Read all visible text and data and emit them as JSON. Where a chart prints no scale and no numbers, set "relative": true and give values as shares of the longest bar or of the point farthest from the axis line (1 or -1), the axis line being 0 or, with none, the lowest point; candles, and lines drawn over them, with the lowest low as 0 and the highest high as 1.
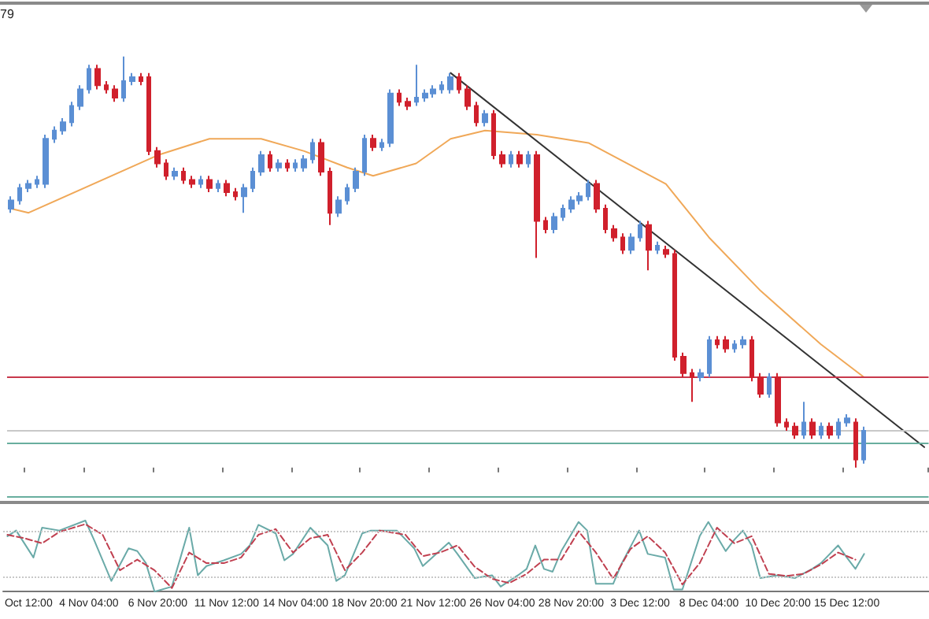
{
  "chart_data": [
    {
      "type": "candlestick",
      "relative": true,
      "tick_labels": "x",
      "grid": false,
      "marker": "none",
      "annotations": [
        "79"
      ],
      "categories": [
        null,
        null,
        "Oct 12:00",
        null,
        null,
        null,
        null,
        null,
        null,
        "4 Nov 04:00",
        null,
        null,
        null,
        null,
        null,
        null,
        null,
        "6 Nov 20:00",
        null,
        null,
        null,
        null,
        null,
        null,
        null,
        "11 Nov 12:00",
        null,
        null,
        null,
        null,
        null,
        null,
        null,
        "14 Nov 04:00",
        null,
        null,
        null,
        null,
        null,
        null,
        null,
        "18 Nov 20:00",
        null,
        null,
        null,
        null,
        null,
        null,
        null,
        "21 Nov 12:00",
        null,
        null,
        null,
        null,
        null,
        null,
        null,
        "26 Nov 04:00",
        null,
        null,
        null,
        null,
        null,
        null,
        null,
        "28 Nov 20:00",
        null,
        null,
        null,
        null,
        null,
        null,
        null,
        "3 Dec 12:00",
        null,
        null,
        null,
        null,
        null,
        null,
        null,
        "8 Dec 04:00",
        null,
        null,
        null,
        null,
        null,
        null,
        null,
        "10 Dec 20:00",
        null,
        null,
        null,
        null,
        null,
        null,
        null,
        "15 Dec 12:00",
        null,
        null,
        null,
        null,
        null,
        null,
        null,
        null,
        null
      ],
      "ohlc": [
        [
          0.63,
          0.66,
          0.62,
          0.65
        ],
        [
          0.65,
          0.69,
          0.64,
          0.68
        ],
        [
          0.68,
          0.7,
          0.67,
          0.69
        ],
        [
          0.69,
          0.71,
          0.68,
          0.7
        ],
        [
          0.69,
          0.81,
          0.68,
          0.8
        ],
        [
          0.8,
          0.83,
          0.79,
          0.82
        ],
        [
          0.82,
          0.85,
          0.81,
          0.84
        ],
        [
          0.84,
          0.89,
          0.83,
          0.88
        ],
        [
          0.88,
          0.93,
          0.87,
          0.92
        ],
        [
          0.92,
          0.98,
          0.91,
          0.97
        ],
        [
          0.97,
          0.98,
          0.92,
          0.93
        ],
        [
          0.93,
          0.94,
          0.91,
          0.92
        ],
        [
          0.92,
          0.93,
          0.89,
          0.9
        ],
        [
          0.9,
          1,
          0.89,
          0.94
        ],
        [
          0.94,
          0.96,
          0.93,
          0.95
        ],
        [
          0.95,
          0.96,
          0.93,
          0.94
        ],
        [
          0.95,
          0.96,
          0.76,
          0.77
        ],
        [
          0.77,
          0.78,
          0.73,
          0.74
        ],
        [
          0.74,
          0.75,
          0.7,
          0.71
        ],
        [
          0.71,
          0.73,
          0.7,
          0.72
        ],
        [
          0.72,
          0.73,
          0.69,
          0.7
        ],
        [
          0.7,
          0.71,
          0.68,
          0.69
        ],
        [
          0.69,
          0.71,
          0.68,
          0.7
        ],
        [
          0.7,
          0.71,
          0.67,
          0.68
        ],
        [
          0.68,
          0.7,
          0.67,
          0.69
        ],
        [
          0.69,
          0.7,
          0.66,
          0.67
        ],
        [
          0.67,
          0.68,
          0.65,
          0.66
        ],
        [
          0.66,
          0.69,
          0.62,
          0.68
        ],
        [
          0.68,
          0.73,
          0.67,
          0.72
        ],
        [
          0.72,
          0.77,
          0.71,
          0.76
        ],
        [
          0.76,
          0.77,
          0.72,
          0.73
        ],
        [
          0.73,
          0.75,
          0.72,
          0.74
        ],
        [
          0.74,
          0.75,
          0.72,
          0.73
        ],
        [
          0.73,
          0.75,
          0.72,
          0.74
        ],
        [
          0.73,
          0.76,
          0.72,
          0.75
        ],
        [
          0.75,
          0.8,
          0.74,
          0.79
        ],
        [
          0.79,
          0.8,
          0.71,
          0.72
        ],
        [
          0.72,
          0.73,
          0.59,
          0.62
        ],
        [
          0.62,
          0.66,
          0.61,
          0.65
        ],
        [
          0.65,
          0.69,
          0.64,
          0.68
        ],
        [
          0.68,
          0.73,
          0.67,
          0.72
        ],
        [
          0.72,
          0.81,
          0.71,
          0.8
        ],
        [
          0.8,
          0.81,
          0.77,
          0.78
        ],
        [
          0.78,
          0.8,
          0.77,
          0.79
        ],
        [
          0.79,
          0.92,
          0.78,
          0.91
        ],
        [
          0.91,
          0.92,
          0.88,
          0.89
        ],
        [
          0.89,
          0.9,
          0.87,
          0.88
        ],
        [
          0.89,
          0.98,
          0.88,
          0.9
        ],
        [
          0.9,
          0.92,
          0.89,
          0.91
        ],
        [
          0.91,
          0.93,
          0.9,
          0.92
        ],
        [
          0.92,
          0.94,
          0.91,
          0.93
        ],
        [
          0.92,
          0.96,
          0.91,
          0.95
        ],
        [
          0.95,
          0.96,
          0.91,
          0.92
        ],
        [
          0.92,
          0.93,
          0.87,
          0.88
        ],
        [
          0.88,
          0.89,
          0.83,
          0.84
        ],
        [
          0.84,
          0.87,
          0.83,
          0.86
        ],
        [
          0.86,
          0.87,
          0.75,
          0.76
        ],
        [
          0.76,
          0.77,
          0.73,
          0.74
        ],
        [
          0.74,
          0.77,
          0.73,
          0.76
        ],
        [
          0.76,
          0.77,
          0.73,
          0.74
        ],
        [
          0.74,
          0.77,
          0.73,
          0.76
        ],
        [
          0.76,
          0.77,
          0.51,
          0.6
        ],
        [
          0.6,
          0.61,
          0.57,
          0.58
        ],
        [
          0.58,
          0.62,
          0.57,
          0.61
        ],
        [
          0.61,
          0.64,
          0.6,
          0.63
        ],
        [
          0.63,
          0.66,
          0.62,
          0.65
        ],
        [
          0.65,
          0.67,
          0.64,
          0.66
        ],
        [
          0.66,
          0.7,
          0.65,
          0.69
        ],
        [
          0.69,
          0.7,
          0.62,
          0.63
        ],
        [
          0.63,
          0.64,
          0.57,
          0.58
        ],
        [
          0.58,
          0.59,
          0.55,
          0.56
        ],
        [
          0.56,
          0.57,
          0.52,
          0.53
        ],
        [
          0.53,
          0.57,
          0.52,
          0.56
        ],
        [
          0.56,
          0.6,
          0.55,
          0.59
        ],
        [
          0.59,
          0.6,
          0.48,
          0.53
        ],
        [
          0.53,
          0.55,
          0.52,
          0.54
        ],
        [
          0.53,
          0.54,
          0.51,
          0.52
        ],
        [
          0.52,
          0.53,
          0.26,
          0.27
        ],
        [
          0.27,
          0.28,
          0.22,
          0.23
        ],
        [
          0.23,
          0.24,
          0.16,
          0.22
        ],
        [
          0.22,
          0.24,
          0.21,
          0.23
        ],
        [
          0.23,
          0.32,
          0.22,
          0.31
        ],
        [
          0.31,
          0.32,
          0.29,
          0.3
        ],
        [
          0.31,
          0.32,
          0.28,
          0.29
        ],
        [
          0.29,
          0.31,
          0.28,
          0.3
        ],
        [
          0.3,
          0.32,
          0.29,
          0.31
        ],
        [
          0.31,
          0.32,
          0.21,
          0.22
        ],
        [
          0.22,
          0.23,
          0.17,
          0.18
        ],
        [
          0.18,
          0.23,
          0.17,
          0.22
        ],
        [
          0.22,
          0.23,
          0.1,
          0.11
        ],
        [
          0.11,
          0.12,
          0.09,
          0.1
        ],
        [
          0.1,
          0.11,
          0.07,
          0.08
        ],
        [
          0.08,
          0.16,
          0.07,
          0.11
        ],
        [
          0.11,
          0.12,
          0.07,
          0.08
        ],
        [
          0.08,
          0.11,
          0.07,
          0.1
        ],
        [
          0.1,
          0.11,
          0.07,
          0.08
        ],
        [
          0.08,
          0.12,
          0.07,
          0.11
        ],
        [
          0.11,
          0.13,
          0.1,
          0.12
        ],
        [
          0.11,
          0.12,
          0,
          0.02
        ],
        [
          0.02,
          0.1,
          0.01,
          0.09
        ],
        null,
        null,
        null,
        null,
        null,
        null,
        null
      ],
      "colors": [
        "#5b8fd4",
        "#5b8fd4",
        "#5b8fd4",
        "#5b8fd4",
        "#5b8fd4",
        "#5b8fd4",
        "#5b8fd4",
        "#5b8fd4",
        "#5b8fd4",
        "#5b8fd4",
        "#d0202c",
        "#d0202c",
        "#d0202c",
        "#5b8fd4",
        "#5b8fd4",
        "#d0202c",
        "#d0202c",
        "#d0202c",
        "#d0202c",
        "#5b8fd4",
        "#d0202c",
        "#d0202c",
        "#5b8fd4",
        "#d0202c",
        "#5b8fd4",
        "#d0202c",
        "#d0202c",
        "#5b8fd4",
        "#5b8fd4",
        "#5b8fd4",
        "#d0202c",
        "#5b8fd4",
        "#d0202c",
        "#5b8fd4",
        "#5b8fd4",
        "#5b8fd4",
        "#d0202c",
        "#d0202c",
        "#5b8fd4",
        "#5b8fd4",
        "#5b8fd4",
        "#5b8fd4",
        "#d0202c",
        "#5b8fd4",
        "#5b8fd4",
        "#d0202c",
        "#d0202c",
        "#5b8fd4",
        "#5b8fd4",
        "#5b8fd4",
        "#5b8fd4",
        "#5b8fd4",
        "#d0202c",
        "#d0202c",
        "#d0202c",
        "#5b8fd4",
        "#d0202c",
        "#d0202c",
        "#5b8fd4",
        "#d0202c",
        "#5b8fd4",
        "#d0202c",
        "#d0202c",
        "#5b8fd4",
        "#5b8fd4",
        "#5b8fd4",
        "#5b8fd4",
        "#5b8fd4",
        "#d0202c",
        "#d0202c",
        "#d0202c",
        "#d0202c",
        "#5b8fd4",
        "#5b8fd4",
        "#d0202c",
        "#5b8fd4",
        "#d0202c",
        "#d0202c",
        "#d0202c",
        "#d0202c",
        "#5b8fd4",
        "#5b8fd4",
        "#d0202c",
        "#d0202c",
        "#5b8fd4",
        "#5b8fd4",
        "#d0202c",
        "#d0202c",
        "#5b8fd4",
        "#d0202c",
        "#d0202c",
        "#d0202c",
        "#5b8fd4",
        "#d0202c",
        "#5b8fd4",
        "#d0202c",
        "#5b8fd4",
        "#5b8fd4",
        "#d0202c",
        "#5b8fd4",
        null,
        null,
        null,
        null,
        null,
        null,
        null
      ],
      "series": [
        {
          "type": "line",
          "color": "#f0a858",
          "values": [
            0.63,
            null,
            0.62,
            null,
            null,
            null,
            null,
            null,
            null,
            null,
            null,
            null,
            null,
            null,
            null,
            null,
            null,
            0.76,
            null,
            null,
            null,
            null,
            null,
            0.8,
            null,
            null,
            null,
            null,
            null,
            0.8,
            null,
            null,
            null,
            null,
            0.77,
            null,
            null,
            null,
            null,
            0.73,
            null,
            null,
            0.71,
            null,
            null,
            null,
            null,
            0.74,
            null,
            null,
            null,
            0.8,
            null,
            null,
            null,
            0.82,
            null,
            null,
            null,
            null,
            null,
            0.81,
            null,
            null,
            null,
            null,
            null,
            0.79,
            null,
            null,
            null,
            null,
            null,
            null,
            null,
            null,
            0.69,
            null,
            null,
            null,
            null,
            0.56,
            null,
            null,
            null,
            null,
            null,
            0.43,
            null,
            null,
            null,
            null,
            null,
            null,
            0.3,
            null,
            null,
            null,
            null,
            0.22,
            null,
            null,
            null,
            null,
            null,
            null,
            null
          ]
        },
        {
          "type": "line",
          "color": "#333333",
          "values": [
            null,
            null,
            null,
            null,
            null,
            null,
            null,
            null,
            null,
            null,
            null,
            null,
            null,
            null,
            null,
            null,
            null,
            null,
            null,
            null,
            null,
            null,
            null,
            null,
            null,
            null,
            null,
            null,
            null,
            null,
            null,
            null,
            null,
            null,
            null,
            null,
            null,
            null,
            null,
            null,
            null,
            null,
            null,
            null,
            null,
            null,
            null,
            null,
            null,
            null,
            null,
            0.96,
            null,
            null,
            null,
            null,
            null,
            null,
            null,
            null,
            null,
            null,
            null,
            null,
            null,
            null,
            null,
            null,
            null,
            null,
            null,
            null,
            null,
            null,
            null,
            null,
            null,
            null,
            null,
            null,
            null,
            null,
            null,
            null,
            null,
            null,
            null,
            null,
            null,
            null,
            null,
            null,
            null,
            null,
            null,
            null,
            null,
            null,
            null,
            null,
            null,
            null,
            null,
            null,
            null,
            null,
            0.05
          ]
        }
      ],
      "ref_lines": [
        {
          "axis": "y",
          "value": 0.22,
          "color": "#c8384c"
        },
        {
          "axis": "y",
          "value": 0.09,
          "color": "#c8c8c8"
        },
        {
          "axis": "y",
          "value": 0.06,
          "color": "#68ae9e"
        },
        {
          "axis": "y",
          "value": -0.07,
          "color": "#68ae9e"
        }
      ]
    },
    {
      "type": "line",
      "relative": true,
      "grid": false,
      "marker": "none",
      "tick_labels": false,
      "categories": [
        null,
        null,
        null,
        null,
        null,
        null,
        null,
        null,
        null,
        null,
        null,
        null,
        null,
        null,
        null,
        null,
        null,
        null,
        null,
        null,
        null,
        null,
        null,
        null,
        null,
        null,
        null,
        null,
        null,
        null,
        null,
        null,
        null,
        null,
        null,
        null,
        null,
        null,
        null,
        null,
        null,
        null,
        null,
        null,
        null,
        null,
        null,
        null,
        null,
        null,
        null,
        null,
        null,
        null,
        null,
        null,
        null,
        null,
        null,
        null,
        null,
        null,
        null,
        null,
        null,
        null,
        null,
        null,
        null,
        null,
        null,
        null,
        null,
        null,
        null,
        null,
        null,
        null,
        null,
        null,
        null,
        null,
        null,
        null,
        null,
        null,
        null,
        null,
        null,
        null,
        null,
        null,
        null,
        null,
        null,
        null,
        null,
        null,
        null,
        null,
        null,
        null,
        null,
        null,
        null,
        null,
        null
      ],
      "series": [
        {
          "color": "#6aaaa8",
          "line_style": "solid",
          "values": [
            0.78,
            0.86,
            null,
            0.48,
            0.9,
            null,
            0.86,
            null,
            null,
            1,
            0.73,
            null,
            0.15,
            null,
            0.61,
            0.57,
            0.4,
            0,
            null,
            0.07,
            0.48,
            0.9,
            0.23,
            0.36,
            null,
            0.44,
            null,
            0.53,
            0.65,
            0.94,
            null,
            0.82,
            0.44,
            0.53,
            null,
            0.9,
            null,
            0.65,
            0.15,
            0.23,
            null,
            0.82,
            0.86,
            null,
            null,
            0.86,
            null,
            0.61,
            0.36,
            null,
            null,
            0.69,
            0.53,
            null,
            0.19,
            null,
            0.23,
            0.07,
            null,
            0.23,
            0.32,
            0.65,
            0.32,
            0.28,
            0.57,
            null,
            0.98,
            0.86,
            0.11,
            null,
            0.11,
            0.4,
            null,
            0.86,
            0.53,
            null,
            0.48,
            0.03,
            0.03,
            null,
            0.78,
            0.98,
            null,
            0.57,
            0.73,
            0.86,
            0.65,
            0.19,
            null,
            0.23,
            null,
            0.19,
            null,
            0.32,
            0.4,
            null,
            0.65,
            0.48,
            0.32,
            0.53,
            null,
            null,
            null,
            null,
            null,
            null,
            null
          ]
        },
        {
          "color": "#c04050",
          "line_style": "dashed",
          "values": [
            0.8,
            null,
            0.75,
            null,
            0.68,
            null,
            0.84,
            null,
            null,
            0.95,
            null,
            0.8,
            null,
            0.3,
            null,
            0.45,
            null,
            0.3,
            null,
            0.05,
            null,
            0.55,
            null,
            0.4,
            null,
            0.4,
            null,
            0.48,
            null,
            0.8,
            null,
            0.88,
            null,
            0.55,
            null,
            0.75,
            null,
            0.8,
            null,
            0.3,
            null,
            0.55,
            null,
            0.86,
            null,
            null,
            0.8,
            null,
            0.5,
            null,
            0.55,
            null,
            0.65,
            null,
            0.35,
            null,
            0.18,
            null,
            0.12,
            null,
            0.25,
            null,
            0.45,
            null,
            0.45,
            null,
            0.85,
            null,
            0.55,
            null,
            0.18,
            null,
            0.6,
            null,
            0.78,
            null,
            0.55,
            null,
            0.1,
            null,
            0.4,
            null,
            0.9,
            null,
            0.68,
            null,
            0.78,
            null,
            0.25,
            null,
            0.22,
            null,
            0.25,
            null,
            0.38,
            null,
            0.55,
            null,
            0.45,
            null,
            null,
            null,
            null,
            null,
            null,
            null,
            null
          ]
        }
      ],
      "ref_lines": [
        {
          "axis": "y",
          "value": 0.86,
          "color": "#c8c8c8",
          "line_style": "dotted"
        },
        {
          "axis": "y",
          "value": 0.21,
          "color": "#c8c8c8",
          "line_style": "dotted"
        }
      ]
    }
  ]
}
